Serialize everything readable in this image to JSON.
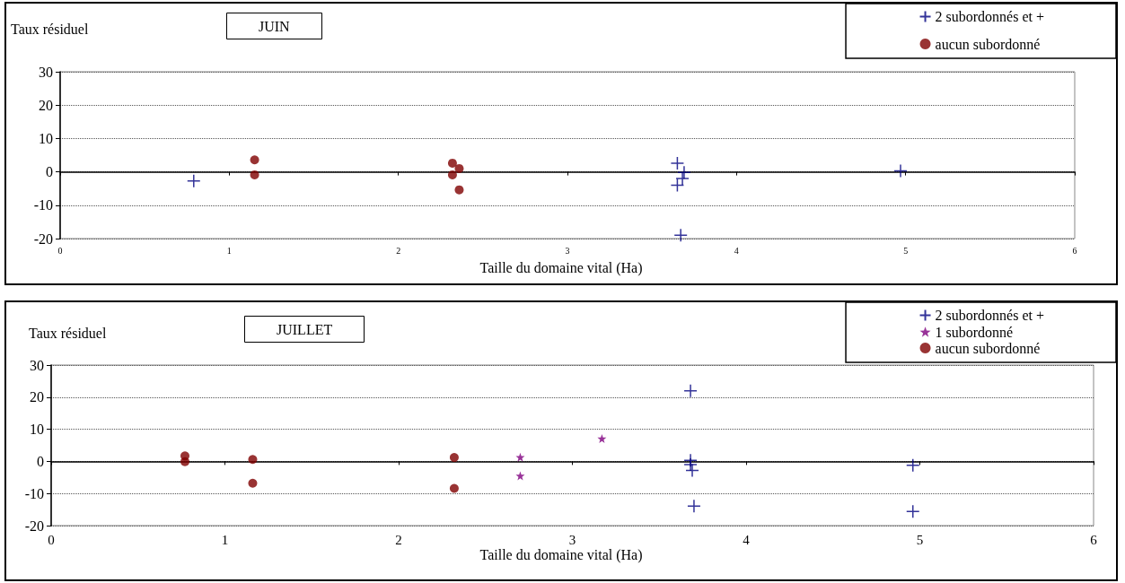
{
  "chart_data": [
    {
      "type": "scatter",
      "title": "JUIN",
      "xlabel": "Taille du domaine vital (Ha)",
      "ylabel": "Taux résiduel",
      "xlim": [
        0,
        6
      ],
      "xticks": [
        0,
        1,
        2,
        3,
        4,
        5,
        6
      ],
      "ylim": [
        -20,
        30
      ],
      "yticks": [
        -20,
        -10,
        0,
        10,
        20,
        30
      ],
      "grid": "y",
      "legend": "top right",
      "series": [
        {
          "name": "2 subordonnés et +",
          "color": "#000080",
          "marker": "cross",
          "x": [
            0.79,
            3.65,
            3.69,
            3.68,
            3.65,
            3.67,
            4.97
          ],
          "values": [
            -2.7,
            2.6,
            -0.2,
            -2,
            -4,
            -19,
            0.3
          ]
        },
        {
          "name": "aucun subordonné",
          "color": "#800000",
          "marker": "circle",
          "x": [
            1.15,
            1.15,
            2.32,
            2.36,
            2.32,
            2.36
          ],
          "values": [
            3.6,
            -0.9,
            2.6,
            1,
            -0.9,
            -5.4
          ]
        }
      ]
    },
    {
      "type": "scatter",
      "title": "JUILLET",
      "xlabel": "Taille du domaine vital (Ha)",
      "ylabel": "Taux résiduel",
      "xlim": [
        0,
        6
      ],
      "xticks": [
        0,
        1,
        2,
        3,
        4,
        5,
        6
      ],
      "ylim": [
        -20,
        30
      ],
      "yticks": [
        -20,
        -10,
        0,
        10,
        20,
        30
      ],
      "grid": "y",
      "legend": "top right",
      "series": [
        {
          "name": "2 subordonnés et +",
          "color": "#000080",
          "marker": "cross",
          "x": [
            3.68,
            3.68,
            3.68,
            3.69,
            3.7,
            4.96,
            4.96
          ],
          "values": [
            22,
            0.3,
            -1,
            -2.8,
            -13.9,
            -1.2,
            -15.6
          ]
        },
        {
          "name": "1 subordonné",
          "color": "#800080",
          "marker": "star",
          "x": [
            2.7,
            2.7,
            3.17
          ],
          "values": [
            1.3,
            -4.5,
            7.1
          ]
        },
        {
          "name": "aucun subordonné",
          "color": "#800000",
          "marker": "circle",
          "x": [
            0.77,
            0.77,
            1.16,
            1.16,
            2.32,
            2.32
          ],
          "values": [
            1.7,
            -0.1,
            0.6,
            -6.8,
            1.2,
            -8.4
          ]
        }
      ]
    }
  ]
}
